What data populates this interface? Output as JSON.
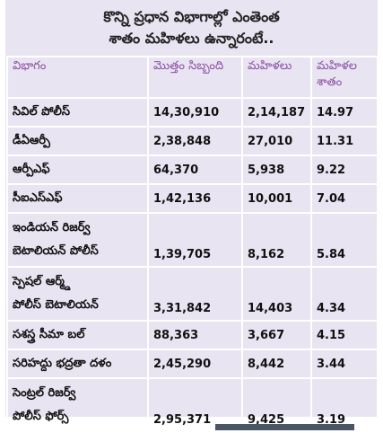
{
  "title": [
    "కొన్ని ప్రధాన విభాగాల్లో ఎంతెంత",
    "శాతం మహిళలు ఉన్నారంటే.."
  ],
  "table": {
    "header": [
      "విభాగం",
      "మొత్తం సిబ్బంది",
      "మహిళలు",
      "మహిళల శాతం"
    ],
    "rows": [
      [
        [
          "సివిల్ పోలీస్"
        ],
        "14,30,910",
        "2,14,187",
        "14.97"
      ],
      [
        [
          "డీఏఆర్పీ"
        ],
        "2,38,848",
        "27,010",
        "11.31"
      ],
      [
        [
          "ఆర్పీఎఫ్"
        ],
        "64,370",
        "5,938",
        "9.22"
      ],
      [
        [
          "సీఐఎస్ఎఫ్"
        ],
        "1,42,136",
        "10,001",
        "7.04"
      ],
      [
        [
          "ఇండియన్ రిజర్వ్",
          "బెటాలియన్ పోలీస్"
        ],
        "1,39,705",
        "8,162",
        "5.84"
      ],
      [
        [
          "స్పెషల్ ఆర్మ్డ్",
          "పోలీస్ బెటాలియన్"
        ],
        "3,31,842",
        "14,403",
        "4.34"
      ],
      [
        [
          "సశస్త్ర సీమా బల్"
        ],
        "88,363",
        "3,667",
        "4.15"
      ],
      [
        [
          "సరిహద్దు భద్రతా దళం"
        ],
        "2,45,290",
        "8,442",
        "3.44"
      ],
      [
        [
          "సెంట్రల్ రిజర్వ్",
          "పోలీస్ ఫోర్స్"
        ],
        "2,95,371",
        "9,425",
        "3.19"
      ]
    ]
  }
}
